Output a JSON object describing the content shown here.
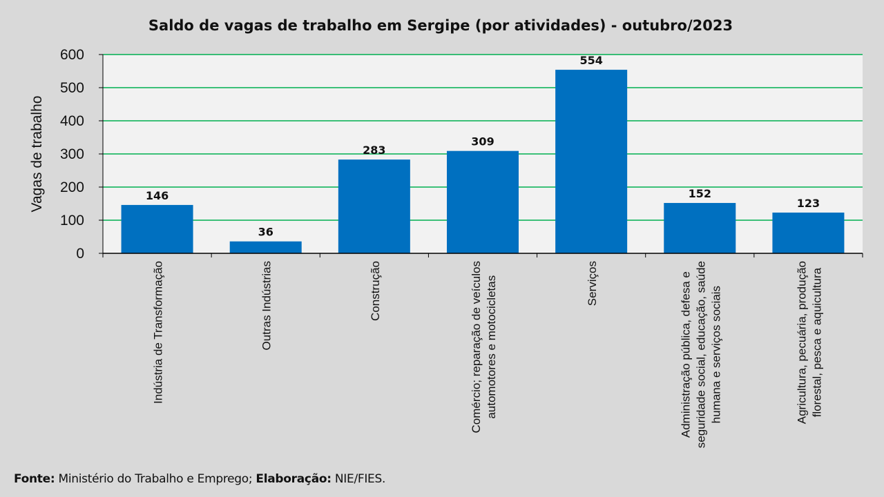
{
  "chart_data": {
    "type": "bar",
    "title": "Saldo de vagas de trabalho em Sergipe (por atividades) - outubro/2023",
    "xlabel": "",
    "ylabel": "Vagas de trabalho",
    "ylim": [
      0,
      600
    ],
    "yticks": [
      0,
      100,
      200,
      300,
      400,
      500,
      600
    ],
    "grid": true,
    "categories": [
      [
        "Indústria de Transformação"
      ],
      [
        "Outras Indústrias"
      ],
      [
        "Construção"
      ],
      [
        "Comércio; reparação de veículos",
        "automotores e motocicletas"
      ],
      [
        "Serviços"
      ],
      [
        "Administração pública, defesa e",
        "seguridade social, educação, saúde",
        "humana e serviços sociais"
      ],
      [
        "Agricultura, pecuária, produção",
        "florestal, pesca e aquicultura"
      ]
    ],
    "values": [
      146,
      36,
      283,
      309,
      554,
      152,
      123
    ],
    "colors": {
      "bar": "#0070c0",
      "grid": "#00b050",
      "plot_bg": "#f2f2f2",
      "page_bg": "#d9d9d9"
    }
  },
  "footer": {
    "source_label": "Fonte:",
    "source_text": " Ministério do Trabalho e Emprego; ",
    "elab_label": "Elaboração:",
    "elab_text": " NIE/FIES."
  }
}
